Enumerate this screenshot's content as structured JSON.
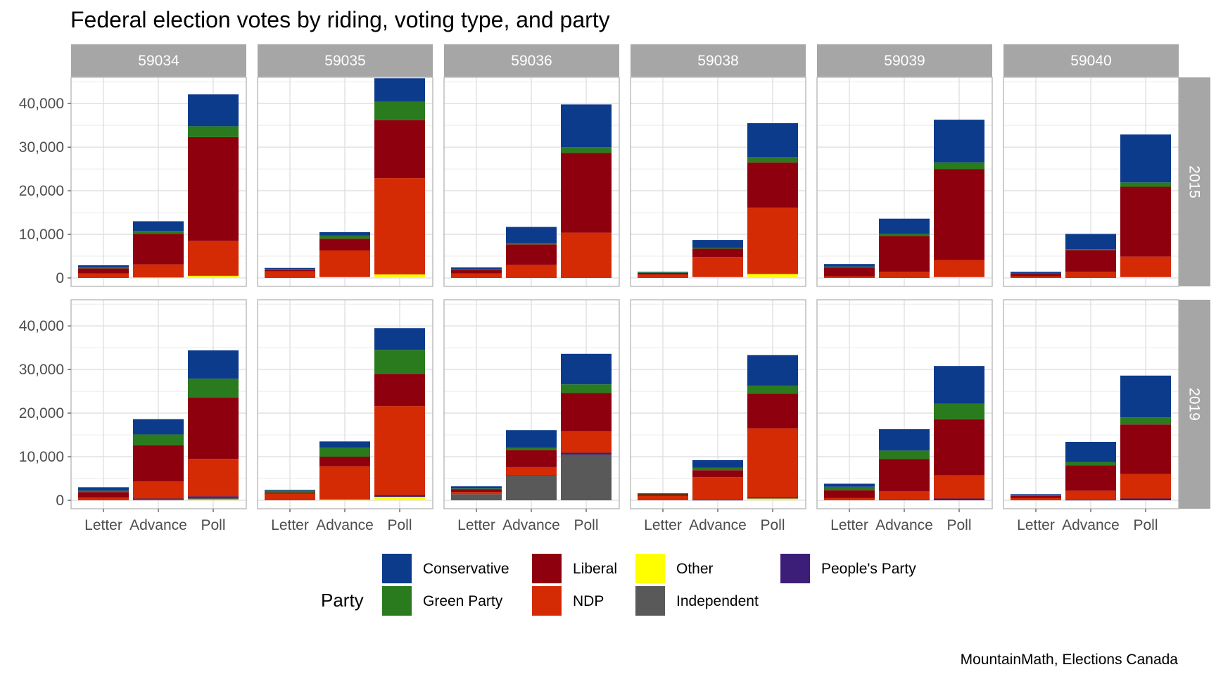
{
  "title": "Federal election votes by riding, voting type, and party",
  "caption": "MountainMath, Elections Canada",
  "legend": {
    "title": "Party",
    "items": [
      {
        "label": "Conservative",
        "color": "#0d3b8c"
      },
      {
        "label": "Green Party",
        "color": "#2a7a1e"
      },
      {
        "label": "Liberal",
        "color": "#8f000e"
      },
      {
        "label": "NDP",
        "color": "#d42b04"
      },
      {
        "label": "Other",
        "color": "#ffff00"
      },
      {
        "label": "Independent",
        "color": "#595959"
      },
      {
        "label": "People's Party",
        "color": "#3c1e78"
      }
    ]
  },
  "chart_data": {
    "type": "bar",
    "stacked": true,
    "facet_columns": [
      "59034",
      "59035",
      "59036",
      "59038",
      "59039",
      "59040"
    ],
    "facet_rows": [
      "2015",
      "2019"
    ],
    "categories": [
      "Letter",
      "Advance",
      "Poll"
    ],
    "y_ticks": [
      "0",
      "10,000",
      "20,000",
      "30,000",
      "40,000"
    ],
    "ylim": [
      0,
      46000
    ],
    "grid": true,
    "legend_position": "bottom",
    "stack_order": [
      "Other",
      "Independent",
      "People's Party",
      "NDP",
      "Liberal",
      "Green Party",
      "Conservative"
    ],
    "panels": [
      {
        "riding": "59034",
        "year": "2015",
        "bars": [
          {
            "category": "Letter",
            "values": {
              "NDP": 1000,
              "Liberal": 1200,
              "Green Party": 200,
              "Conservative": 500
            }
          },
          {
            "category": "Advance",
            "values": {
              "Other": 100,
              "NDP": 3000,
              "Liberal": 7000,
              "Green Party": 700,
              "Conservative": 2200
            }
          },
          {
            "category": "Poll",
            "values": {
              "Other": 500,
              "NDP": 8000,
              "Liberal": 23800,
              "Green Party": 2500,
              "Conservative": 7300
            }
          }
        ]
      },
      {
        "riding": "59035",
        "year": "2015",
        "bars": [
          {
            "category": "Letter",
            "values": {
              "NDP": 1500,
              "Liberal": 400,
              "Green Party": 200,
              "Conservative": 200
            }
          },
          {
            "category": "Advance",
            "values": {
              "Other": 200,
              "NDP": 6100,
              "Liberal": 2700,
              "Green Party": 700,
              "Conservative": 800
            }
          },
          {
            "category": "Poll",
            "values": {
              "Other": 800,
              "NDP": 22100,
              "Liberal": 13300,
              "Green Party": 4200,
              "Conservative": 5400
            }
          }
        ]
      },
      {
        "riding": "59036",
        "year": "2015",
        "bars": [
          {
            "category": "Letter",
            "values": {
              "NDP": 1000,
              "Liberal": 800,
              "Green Party": 100,
              "Conservative": 500
            }
          },
          {
            "category": "Advance",
            "values": {
              "NDP": 3000,
              "Liberal": 4700,
              "Green Party": 300,
              "Conservative": 3700
            }
          },
          {
            "category": "Poll",
            "values": {
              "NDP": 10400,
              "Liberal": 18300,
              "Green Party": 1300,
              "Conservative": 9800
            }
          }
        ]
      },
      {
        "riding": "59038",
        "year": "2015",
        "bars": [
          {
            "category": "Letter",
            "values": {
              "NDP": 800,
              "Liberal": 400,
              "Green Party": 50,
              "Conservative": 150
            }
          },
          {
            "category": "Advance",
            "values": {
              "Other": 200,
              "NDP": 4600,
              "Liberal": 1900,
              "Green Party": 200,
              "Conservative": 1800
            }
          },
          {
            "category": "Poll",
            "values": {
              "Other": 900,
              "NDP": 15200,
              "Liberal": 10400,
              "Green Party": 1200,
              "Conservative": 7800
            }
          }
        ]
      },
      {
        "riding": "59039",
        "year": "2015",
        "bars": [
          {
            "category": "Letter",
            "values": {
              "NDP": 400,
              "Liberal": 2000,
              "Green Party": 200,
              "Conservative": 600
            }
          },
          {
            "category": "Advance",
            "values": {
              "NDP": 1400,
              "Liberal": 8200,
              "Green Party": 500,
              "Conservative": 3500
            }
          },
          {
            "category": "Poll",
            "values": {
              "Other": 200,
              "NDP": 3900,
              "Liberal": 20900,
              "Green Party": 1500,
              "Conservative": 9800
            }
          }
        ]
      },
      {
        "riding": "59040",
        "year": "2015",
        "bars": [
          {
            "category": "Letter",
            "values": {
              "NDP": 400,
              "Liberal": 600,
              "Green Party": 50,
              "Conservative": 350
            }
          },
          {
            "category": "Advance",
            "values": {
              "NDP": 1400,
              "Liberal": 5000,
              "Green Party": 200,
              "Conservative": 3500
            }
          },
          {
            "category": "Poll",
            "values": {
              "Other": 200,
              "NDP": 4700,
              "Liberal": 16000,
              "Green Party": 1000,
              "Conservative": 11000
            }
          }
        ]
      },
      {
        "riding": "59034",
        "year": "2019",
        "bars": [
          {
            "category": "Letter",
            "values": {
              "NDP": 600,
              "Liberal": 1300,
              "Green Party": 300,
              "Conservative": 800
            }
          },
          {
            "category": "Advance",
            "values": {
              "Independent": 200,
              "People's Party": 200,
              "NDP": 3900,
              "Liberal": 8300,
              "Green Party": 2500,
              "Conservative": 3500
            }
          },
          {
            "category": "Poll",
            "values": {
              "Other": 200,
              "Independent": 300,
              "People's Party": 400,
              "NDP": 8600,
              "Liberal": 14100,
              "Green Party": 4300,
              "Conservative": 6500
            }
          }
        ]
      },
      {
        "riding": "59035",
        "year": "2019",
        "bars": [
          {
            "category": "Letter",
            "values": {
              "NDP": 1500,
              "Liberal": 300,
              "Green Party": 400,
              "Conservative": 200
            }
          },
          {
            "category": "Advance",
            "values": {
              "Other": 200,
              "People's Party": 100,
              "NDP": 7500,
              "Liberal": 2200,
              "Green Party": 2100,
              "Conservative": 1400
            }
          },
          {
            "category": "Poll",
            "values": {
              "Other": 800,
              "People's Party": 400,
              "NDP": 20400,
              "Liberal": 7400,
              "Green Party": 5500,
              "Conservative": 5000
            }
          }
        ]
      },
      {
        "riding": "59036",
        "year": "2019",
        "bars": [
          {
            "category": "Letter",
            "values": {
              "Independent": 1400,
              "NDP": 500,
              "Liberal": 600,
              "Green Party": 200,
              "Conservative": 500
            }
          },
          {
            "category": "Advance",
            "values": {
              "Independent": 5700,
              "People's Party": 100,
              "NDP": 1800,
              "Liberal": 3900,
              "Green Party": 600,
              "Conservative": 4000
            }
          },
          {
            "category": "Poll",
            "values": {
              "Independent": 10500,
              "People's Party": 400,
              "NDP": 4900,
              "Liberal": 8800,
              "Green Party": 2000,
              "Conservative": 7000
            }
          }
        ]
      },
      {
        "riding": "59038",
        "year": "2019",
        "bars": [
          {
            "category": "Letter",
            "values": {
              "NDP": 1000,
              "Liberal": 400,
              "Green Party": 100,
              "Conservative": 100
            }
          },
          {
            "category": "Advance",
            "values": {
              "People's Party": 100,
              "NDP": 5200,
              "Liberal": 1600,
              "Green Party": 600,
              "Conservative": 1700
            }
          },
          {
            "category": "Poll",
            "values": {
              "Other": 400,
              "People's Party": 300,
              "NDP": 15800,
              "Liberal": 8000,
              "Green Party": 1800,
              "Conservative": 7000
            }
          }
        ]
      },
      {
        "riding": "59039",
        "year": "2019",
        "bars": [
          {
            "category": "Letter",
            "values": {
              "NDP": 500,
              "Liberal": 1800,
              "Green Party": 800,
              "Conservative": 700
            }
          },
          {
            "category": "Advance",
            "values": {
              "People's Party": 200,
              "NDP": 1900,
              "Liberal": 7400,
              "Green Party": 1900,
              "Conservative": 4900
            }
          },
          {
            "category": "Poll",
            "values": {
              "People's Party": 400,
              "NDP": 5300,
              "Liberal": 12900,
              "Green Party": 3600,
              "Conservative": 8600
            }
          }
        ]
      },
      {
        "riding": "59040",
        "year": "2019",
        "bars": [
          {
            "category": "Letter",
            "values": {
              "NDP": 500,
              "Liberal": 500,
              "Green Party": 100,
              "Conservative": 300
            }
          },
          {
            "category": "Advance",
            "values": {
              "People's Party": 100,
              "NDP": 2100,
              "Liberal": 5800,
              "Green Party": 800,
              "Conservative": 4600
            }
          },
          {
            "category": "Poll",
            "values": {
              "People's Party": 400,
              "NDP": 5600,
              "Liberal": 11400,
              "Green Party": 1600,
              "Conservative": 9600
            }
          }
        ]
      }
    ]
  }
}
